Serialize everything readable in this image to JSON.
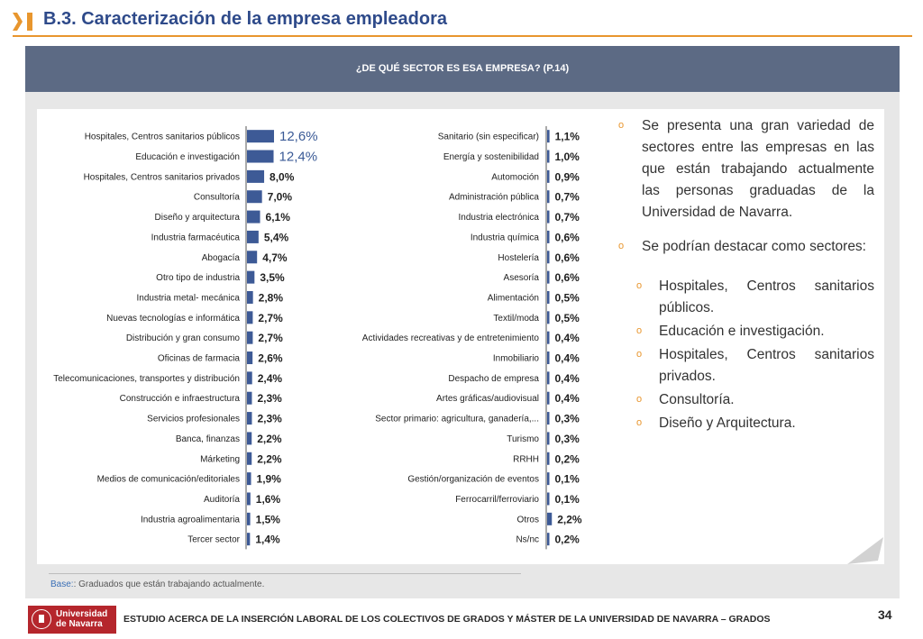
{
  "header": {
    "title": "B.3. Caracterización de la empresa empleadora"
  },
  "banner": {
    "question": "¿DE QUÉ SECTOR ES ESA EMPRESA? (P.14)"
  },
  "chart_data": [
    {
      "type": "bar",
      "orientation": "horizontal",
      "value_format": "percent",
      "categories": [
        "Hospitales, Centros sanitarios públicos",
        "Educación e investigación",
        "Hospitales, Centros sanitarios privados",
        "Consultoría",
        "Diseño y arquitectura",
        "Industria farmacéutica",
        "Abogacía",
        "Otro tipo de industria",
        "Industria metal- mecánica",
        "Nuevas tecnologías e informática",
        "Distribución y gran consumo",
        "Oficinas de farmacia",
        "Telecomunicaciones, transportes y distribución",
        "Construcción e infraestructura",
        "Servicios profesionales",
        "Banca, finanzas",
        "Márketing",
        "Medios de comunicación/editoriales",
        "Auditoría",
        "Industria agroalimentaria",
        "Tercer sector"
      ],
      "values": [
        12.6,
        12.4,
        8.0,
        7.0,
        6.1,
        5.4,
        4.7,
        3.5,
        2.8,
        2.7,
        2.7,
        2.6,
        2.4,
        2.3,
        2.3,
        2.2,
        2.2,
        1.9,
        1.6,
        1.5,
        1.4
      ],
      "value_labels": [
        "12,6%",
        "12,4%",
        "8,0%",
        "7,0%",
        "6,1%",
        "5,4%",
        "4,7%",
        "3,5%",
        "2,8%",
        "2,7%",
        "2,7%",
        "2,6%",
        "2,4%",
        "2,3%",
        "2,3%",
        "2,2%",
        "2,2%",
        "1,9%",
        "1,6%",
        "1,5%",
        "1,4%"
      ],
      "xlim": [
        0,
        12.6
      ]
    },
    {
      "type": "bar",
      "orientation": "horizontal",
      "value_format": "percent",
      "categories": [
        "Sanitario (sin especificar)",
        "Energía y sostenibilidad",
        "Automoción",
        "Administración pública",
        "Industria electrónica",
        "Industria química",
        "Hostelería",
        "Asesoría",
        "Alimentación",
        "Textil/moda",
        "Actividades recreativas y de entretenimiento",
        "Inmobiliario",
        "Despacho de empresa",
        "Artes gráficas/audiovisual",
        "Sector primario: agricultura, ganadería,...",
        "Turismo",
        "RRHH",
        "Gestión/organización de eventos",
        "Ferrocarril/ferroviario",
        "Otros",
        "Ns/nc"
      ],
      "values": [
        1.1,
        1.0,
        0.9,
        0.7,
        0.7,
        0.6,
        0.6,
        0.6,
        0.5,
        0.5,
        0.4,
        0.4,
        0.4,
        0.4,
        0.3,
        0.3,
        0.2,
        0.1,
        0.1,
        2.2,
        0.2
      ],
      "value_labels": [
        "1,1%",
        "1,0%",
        "0,9%",
        "0,7%",
        "0,7%",
        "0,6%",
        "0,6%",
        "0,6%",
        "0,5%",
        "0,5%",
        "0,4%",
        "0,4%",
        "0,4%",
        "0,4%",
        "0,3%",
        "0,3%",
        "0,2%",
        "0,1%",
        "0,1%",
        "2,2%",
        "0,2%"
      ],
      "xlim": [
        0,
        12.6
      ]
    }
  ],
  "notes": {
    "paragraphs": [
      "Se presenta una gran variedad de sectores entre las empresas en las que están trabajando actualmente las personas graduadas de la Universidad de Navarra.",
      "Se podrían destacar como sectores:"
    ],
    "highlights": [
      "Hospitales, Centros sanitarios públicos.",
      "Educación e investigación.",
      "Hospitales, Centros sanitarios privados.",
      "Consultoría.",
      "Diseño y Arquitectura."
    ]
  },
  "base": {
    "key": "Base:",
    "text": ": Graduados que están trabajando actualmente."
  },
  "footer": {
    "logo_text_line1": "Universidad",
    "logo_text_line2": "de Navarra",
    "study_title": "ESTUDIO ACERCA DE LA INSERCIÓN LABORAL DE LOS COLECTIVOS DE GRADOS Y MÁSTER DE LA UNIVERSIDAD DE NAVARRA – GRADOS",
    "page_number": "34"
  },
  "colors": {
    "bar": "#3d5a96",
    "accent": "#e8962e",
    "banner": "#5c6a84",
    "title": "#2e4a8a"
  },
  "icons": {
    "header_mark": "orange-chevron-icon",
    "logo_seal": "university-seal-icon"
  }
}
